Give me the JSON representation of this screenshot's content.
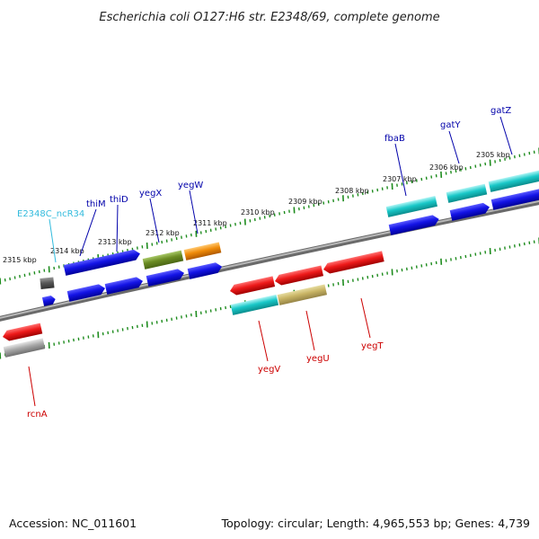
{
  "title": "Escherichia coli O127:H6 str. E2348/69, complete genome",
  "footer": {
    "accession": "Accession: NC_011601",
    "stats": "Topology: circular; Length: 4,965,553 bp; Genes: 4,739"
  },
  "ticks": [
    "2315 kbp",
    "2314 kbp",
    "2313 kbp",
    "2312 kbp",
    "2311 kbp",
    "2310 kbp",
    "2309 kbp",
    "2308 kbp",
    "2307 kbp",
    "2306 kbp",
    "2305 kbp"
  ],
  "genes": [
    {
      "name": "E2348C_ncR34",
      "color": "#33bbdd"
    },
    {
      "name": "thiM",
      "color": "#0000aa"
    },
    {
      "name": "thiD",
      "color": "#0000aa"
    },
    {
      "name": "yegX",
      "color": "#0000aa"
    },
    {
      "name": "yegW",
      "color": "#0000aa"
    },
    {
      "name": "fbaB",
      "color": "#0000aa"
    },
    {
      "name": "gatY",
      "color": "#0000aa"
    },
    {
      "name": "gatZ",
      "color": "#0000aa"
    },
    {
      "name": "yegV",
      "color": "#cc0000"
    },
    {
      "name": "yegU",
      "color": "#cc0000"
    },
    {
      "name": "yegT",
      "color": "#cc0000"
    },
    {
      "name": "rcnA",
      "color": "#cc0000"
    }
  ],
  "colors": {
    "backbone": "#808080",
    "ruler": "#1e8c1e",
    "blue_feature": "#1414e6",
    "red_feature": "#e61414",
    "cyan_feature": "#19c8c8",
    "olive_feature": "#6b8c23",
    "orange_feature": "#f08c0a",
    "khaki_feature": "#c8b464",
    "gray_feature": "#a0a0a0",
    "darkgray_feature": "#606060"
  }
}
